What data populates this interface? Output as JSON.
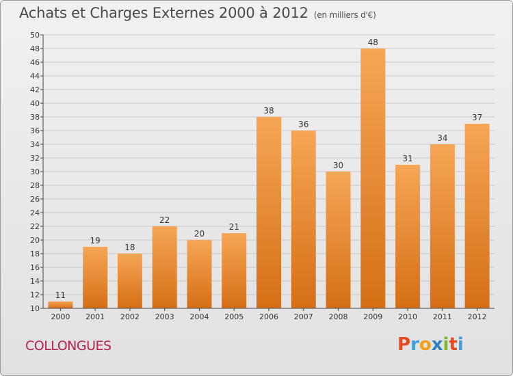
{
  "header": {
    "title": "Achats et Charges Externes 2000 à 2012",
    "subtitle": "(en milliers d'€)"
  },
  "footer": {
    "commune": "COLLONGUES",
    "brand_letters": [
      "P",
      "r",
      "o",
      "x",
      "i",
      "t",
      "i"
    ],
    "brand_colors": [
      "#e8491d",
      "#3ea0d8",
      "#f2a116",
      "#2e7fc1",
      "#7ab929",
      "#e8491d",
      "#3ea0d8"
    ]
  },
  "colors": {
    "bar_light": "#f6a655",
    "bar_dark": "#d56f16",
    "grid": "#c8c8c8",
    "axis": "#444444",
    "text": "#333333"
  },
  "chart_data": {
    "type": "bar",
    "categories": [
      "2000",
      "2001",
      "2002",
      "2003",
      "2004",
      "2005",
      "2006",
      "2007",
      "2008",
      "2009",
      "2010",
      "2011",
      "2012"
    ],
    "values": [
      11,
      19,
      18,
      22,
      20,
      21,
      38,
      36,
      30,
      48,
      31,
      34,
      37
    ],
    "ylim": [
      10,
      50
    ],
    "ytick_step": 2,
    "grid": true,
    "data_labels": true
  }
}
